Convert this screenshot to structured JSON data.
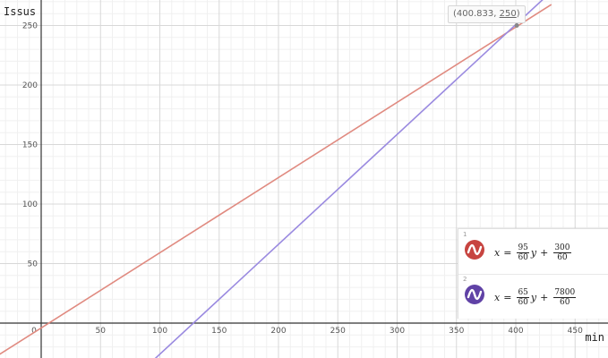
{
  "chart_data": {
    "type": "line",
    "xlabel": "min",
    "ylabel": "Issus",
    "xlim": [
      -35,
      480
    ],
    "ylim": [
      -30,
      275
    ],
    "x_ticks": [
      {
        "value": 0,
        "label": "0"
      },
      {
        "value": 50,
        "label": "50"
      },
      {
        "value": 100,
        "label": "100"
      },
      {
        "value": 150,
        "label": "150"
      },
      {
        "value": 200,
        "label": "200"
      },
      {
        "value": 250,
        "label": "250"
      },
      {
        "value": 300,
        "label": "300"
      },
      {
        "value": 350,
        "label": "350"
      },
      {
        "value": 400,
        "label": "400"
      },
      {
        "value": 450,
        "label": "450"
      }
    ],
    "y_ticks": [
      {
        "value": 50,
        "label": "50"
      },
      {
        "value": 100,
        "label": "100"
      },
      {
        "value": 150,
        "label": "150"
      },
      {
        "value": 200,
        "label": "200"
      },
      {
        "value": 250,
        "label": "250"
      }
    ],
    "minor_step": 10,
    "grid": true,
    "series": [
      {
        "color": "#e08a80",
        "points": [
          [
            -35,
            -26.2
          ],
          [
            430,
            267.6
          ]
        ]
      },
      {
        "color": "#9a8ae0",
        "points": [
          [
            95.8,
            -30
          ],
          [
            430,
            278.5
          ]
        ]
      }
    ],
    "intersection": {
      "x": 400.833,
      "y": 250
    }
  },
  "point_label": {
    "open": "(",
    "x": "400.833",
    "sep": ", ",
    "y": "250",
    "close": ")"
  },
  "expressions": [
    {
      "index": "1",
      "icon": "wave-icon",
      "color": "#c74440",
      "lhs": "x",
      "eq": "=",
      "a_num": "95",
      "a_den": "60",
      "var": "y",
      "plus": "+",
      "b_num": "300",
      "b_den": "60"
    },
    {
      "index": "2",
      "icon": "wave-icon",
      "color": "#6042a6",
      "lhs": "x",
      "eq": "=",
      "a_num": "65",
      "a_den": "60",
      "var": "y",
      "plus": "+",
      "b_num": "7800",
      "b_den": "60"
    }
  ]
}
